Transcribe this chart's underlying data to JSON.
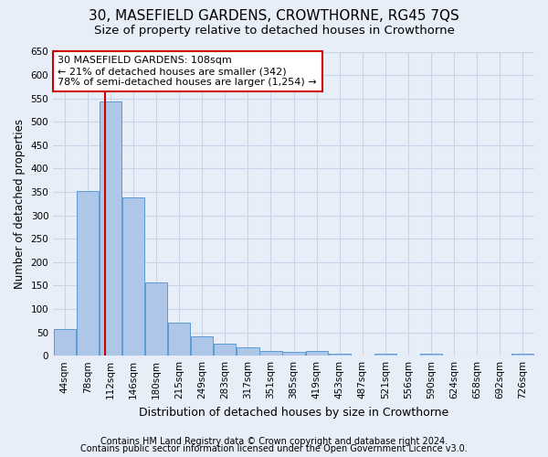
{
  "title": "30, MASEFIELD GARDENS, CROWTHORNE, RG45 7QS",
  "subtitle": "Size of property relative to detached houses in Crowthorne",
  "xlabel": "Distribution of detached houses by size in Crowthorne",
  "ylabel": "Number of detached properties",
  "bar_values": [
    57,
    353,
    543,
    338,
    157,
    70,
    42,
    25,
    18,
    10,
    8,
    10,
    4,
    0,
    5,
    0,
    5,
    0,
    0,
    0,
    5
  ],
  "tick_labels": [
    "44sqm",
    "78sqm",
    "112sqm",
    "146sqm",
    "180sqm",
    "215sqm",
    "249sqm",
    "283sqm",
    "317sqm",
    "351sqm",
    "385sqm",
    "419sqm",
    "453sqm",
    "487sqm",
    "521sqm",
    "556sqm",
    "590sqm",
    "624sqm",
    "658sqm",
    "692sqm",
    "726sqm"
  ],
  "bar_color": "#aec6e8",
  "bar_edge_color": "#5b9bd5",
  "grid_color": "#c8d4e8",
  "background_color": "#e8eef8",
  "vline_x_index": 1.78,
  "vline_color": "#cc0000",
  "annotation_line1": "30 MASEFIELD GARDENS: 108sqm",
  "annotation_line2": "← 21% of detached houses are smaller (342)",
  "annotation_line3": "78% of semi-detached houses are larger (1,254) →",
  "annotation_box_color": "#ffffff",
  "annotation_box_edgecolor": "#cc0000",
  "ylim": [
    0,
    650
  ],
  "yticks": [
    0,
    50,
    100,
    150,
    200,
    250,
    300,
    350,
    400,
    450,
    500,
    550,
    600,
    650
  ],
  "footer_line1": "Contains HM Land Registry data © Crown copyright and database right 2024.",
  "footer_line2": "Contains public sector information licensed under the Open Government Licence v3.0.",
  "title_fontsize": 11,
  "subtitle_fontsize": 9.5,
  "ylabel_fontsize": 8.5,
  "xlabel_fontsize": 9,
  "tick_fontsize": 7.5,
  "annotation_fontsize": 8,
  "footer_fontsize": 7
}
